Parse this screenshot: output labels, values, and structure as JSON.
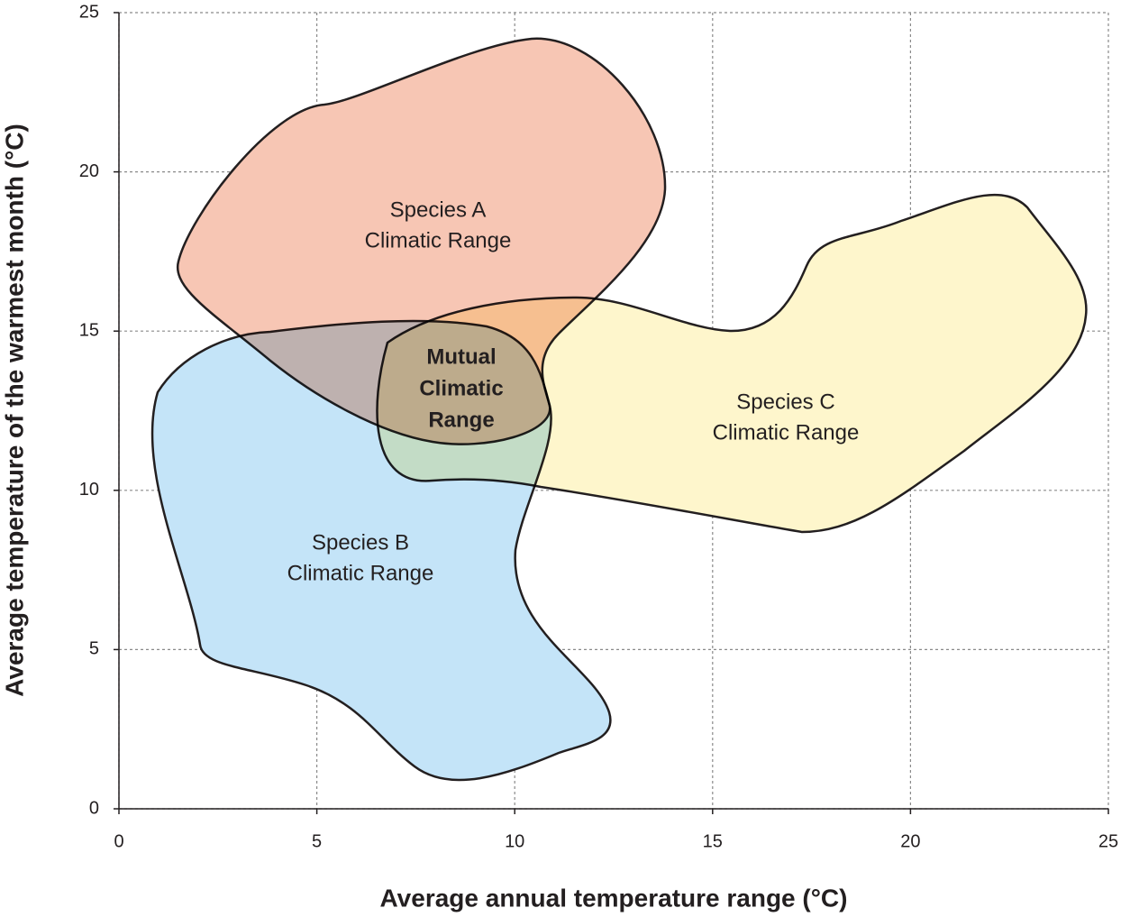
{
  "chart_data": {
    "type": "region",
    "x_label": "Average annual temperature range (°C)",
    "y_label": "Average temperature of the warmest month (°C)",
    "xlim": [
      0,
      25
    ],
    "xticks": [
      0,
      5,
      10,
      15,
      20,
      25
    ],
    "ylim": [
      0,
      25
    ],
    "yticks": [
      0,
      5,
      10,
      15,
      20,
      25
    ],
    "grid": true,
    "regions": [
      {
        "label": [
          "Species A",
          "Climatic Range"
        ],
        "color": "#f7c6b4"
      },
      {
        "label": [
          "Species B",
          "Climatic Range"
        ],
        "color": "#c4e4f8"
      },
      {
        "label": [
          "Species C",
          "Climatic Range"
        ],
        "color": "#fef6cc"
      }
    ],
    "overlap_label": [
      "Mutual",
      "Climatic",
      "Range"
    ]
  }
}
